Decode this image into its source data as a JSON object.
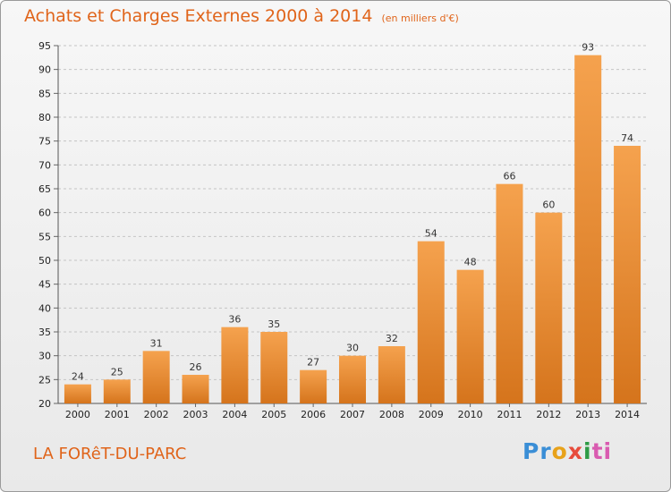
{
  "header": {
    "title": "Achats et Charges Externes 2000 à 2014",
    "unit": "(en milliers d'€)"
  },
  "footer": {
    "place": "LA FORêT-DU-PARC",
    "logo": [
      "Pr",
      "o",
      "x",
      "i",
      "ti"
    ]
  },
  "colors": {
    "bar_light": "#f5a24e",
    "bar_dark": "#d5741c",
    "title": "#e0641a"
  },
  "chart_data": {
    "type": "bar",
    "title": "Achats et Charges Externes 2000 à 2014",
    "categories": [
      "2000",
      "2001",
      "2002",
      "2003",
      "2004",
      "2005",
      "2006",
      "2007",
      "2008",
      "2009",
      "2010",
      "2011",
      "2012",
      "2013",
      "2014"
    ],
    "values": [
      24,
      25,
      31,
      26,
      36,
      35,
      27,
      30,
      32,
      54,
      48,
      66,
      60,
      93,
      74
    ],
    "ylim": [
      20,
      95
    ],
    "yticks": [
      20,
      25,
      30,
      35,
      40,
      45,
      50,
      55,
      60,
      65,
      70,
      75,
      80,
      85,
      90,
      95
    ],
    "grid": "horizontal dashed"
  }
}
